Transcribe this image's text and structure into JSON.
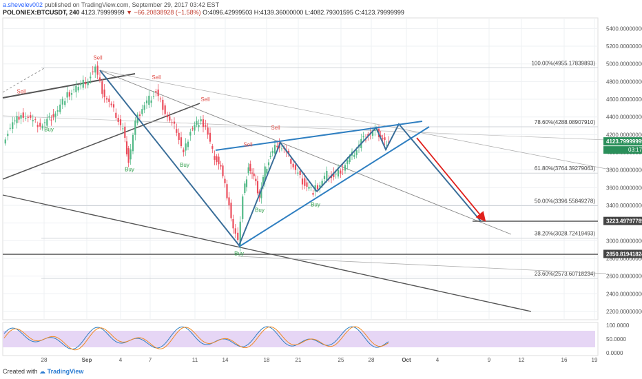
{
  "header": {
    "author": "a.shevelev002",
    "published": "published on TradingView.com, September 29, 2017 03:42 EST",
    "symbol": "POLONIEX:BTCUSDT, 240",
    "last": "4123.79999999",
    "change": "▼ −66.20838928 (−1.58%)",
    "ohlc": "O:4096.42999503 H:4139.36000000 L:4082.79301595 C:4123.79999999"
  },
  "footer": {
    "created_with": "Created with",
    "brand": "TradingView"
  },
  "colors": {
    "candle_up": "#53b987",
    "candle_down": "#eb4d5c",
    "pattern_line": "#3a6e99",
    "channel_line": "#2f7fc1",
    "trend_line": "#333333",
    "target_arrow": "#e0201c",
    "buy_label": "#2e9e4a",
    "sell_label": "#e0514b",
    "stoch_band": "#e6d6f5",
    "price_tag_last": "#2a8f5a",
    "price_tag_level": "#444444"
  },
  "chart_data": {
    "type": "candlestick",
    "ylim": [
      2050,
      5520
    ],
    "y_ticks": [
      "5400.00000000",
      "5200.00000000",
      "5000.00000000",
      "4800.00000000",
      "4600.00000000",
      "4400.00000000",
      "4200.00000000",
      "4000.00000000",
      "3800.00000000",
      "3600.00000000",
      "3400.00000000",
      "3200.00000000",
      "3000.00000000",
      "2800.00000000",
      "2600.00000000",
      "2400.00000000",
      "2200.00000000"
    ],
    "x_ticks": [
      "28",
      "Sep",
      "4",
      "7",
      "11",
      "14",
      "18",
      "21",
      "25",
      "28",
      "Oct",
      "4",
      "9",
      "12",
      "16",
      "19"
    ],
    "last_price": {
      "label": "4123.79999999",
      "value": 4123.8,
      "countdown": "03:17:15"
    },
    "level_tags": [
      {
        "label": "3223.49797789",
        "value": 3223.5
      },
      {
        "label": "2850.81941824",
        "value": 2850.8
      }
    ],
    "fib_levels": [
      {
        "label": "100.00%(4955.17839893)",
        "value": 4955.18
      },
      {
        "label": "78.60%(4288.08907910)",
        "value": 4288.09
      },
      {
        "label": "61.80%(3764.39279063)",
        "value": 3764.39
      },
      {
        "label": "50.00%(3396.55849278)",
        "value": 3396.56
      },
      {
        "label": "38.20%(3028.72419493)",
        "value": 3028.72
      },
      {
        "label": "23.60%(2573.60718234)",
        "value": 2573.61
      }
    ],
    "signals": [
      {
        "type": "Sell",
        "x": 31,
        "price": 4620
      },
      {
        "type": "Buy",
        "x": 71,
        "price": 4330
      },
      {
        "type": "Sell",
        "x": 142,
        "price": 5000
      },
      {
        "type": "Buy",
        "x": 188,
        "price": 3880
      },
      {
        "type": "Sell",
        "x": 227,
        "price": 4780
      },
      {
        "type": "Buy",
        "x": 268,
        "price": 3930
      },
      {
        "type": "Sell",
        "x": 298,
        "price": 4530
      },
      {
        "type": "Sell",
        "x": 360,
        "price": 4020
      },
      {
        "type": "Buy",
        "x": 347,
        "price": 2930
      },
      {
        "type": "Buy",
        "x": 377,
        "price": 3420
      },
      {
        "type": "Sell",
        "x": 400,
        "price": 4210
      },
      {
        "type": "Buy",
        "x": 458,
        "price": 3480
      }
    ],
    "price_path": [
      [
        6,
        4140
      ],
      [
        20,
        4320
      ],
      [
        32,
        4440
      ],
      [
        46,
        4360
      ],
      [
        60,
        4300
      ],
      [
        70,
        4360
      ],
      [
        82,
        4440
      ],
      [
        96,
        4620
      ],
      [
        112,
        4720
      ],
      [
        126,
        4800
      ],
      [
        140,
        4950
      ],
      [
        150,
        4700
      ],
      [
        160,
        4560
      ],
      [
        170,
        4420
      ],
      [
        180,
        4250
      ],
      [
        188,
        3900
      ],
      [
        198,
        4330
      ],
      [
        208,
        4500
      ],
      [
        218,
        4600
      ],
      [
        228,
        4680
      ],
      [
        238,
        4520
      ],
      [
        248,
        4350
      ],
      [
        258,
        4250
      ],
      [
        268,
        3980
      ],
      [
        278,
        4250
      ],
      [
        290,
        4350
      ],
      [
        300,
        4300
      ],
      [
        310,
        4000
      ],
      [
        322,
        3820
      ],
      [
        334,
        3420
      ],
      [
        340,
        3150
      ],
      [
        347,
        2970
      ],
      [
        354,
        3500
      ],
      [
        362,
        3850
      ],
      [
        370,
        3700
      ],
      [
        378,
        3500
      ],
      [
        386,
        3800
      ],
      [
        394,
        3960
      ],
      [
        404,
        4100
      ],
      [
        414,
        4030
      ],
      [
        424,
        3900
      ],
      [
        434,
        3750
      ],
      [
        444,
        3640
      ],
      [
        456,
        3560
      ],
      [
        466,
        3640
      ],
      [
        476,
        3750
      ],
      [
        486,
        3720
      ],
      [
        496,
        3800
      ],
      [
        506,
        3900
      ],
      [
        516,
        4000
      ],
      [
        526,
        4130
      ],
      [
        536,
        4200
      ],
      [
        546,
        4250
      ],
      [
        554,
        4180
      ],
      [
        560,
        4120
      ],
      [
        566,
        4124
      ]
    ],
    "stochastic": {
      "levels": [
        "100.0000",
        "50.0000",
        "0.0000"
      ],
      "band": [
        20,
        80
      ]
    }
  }
}
